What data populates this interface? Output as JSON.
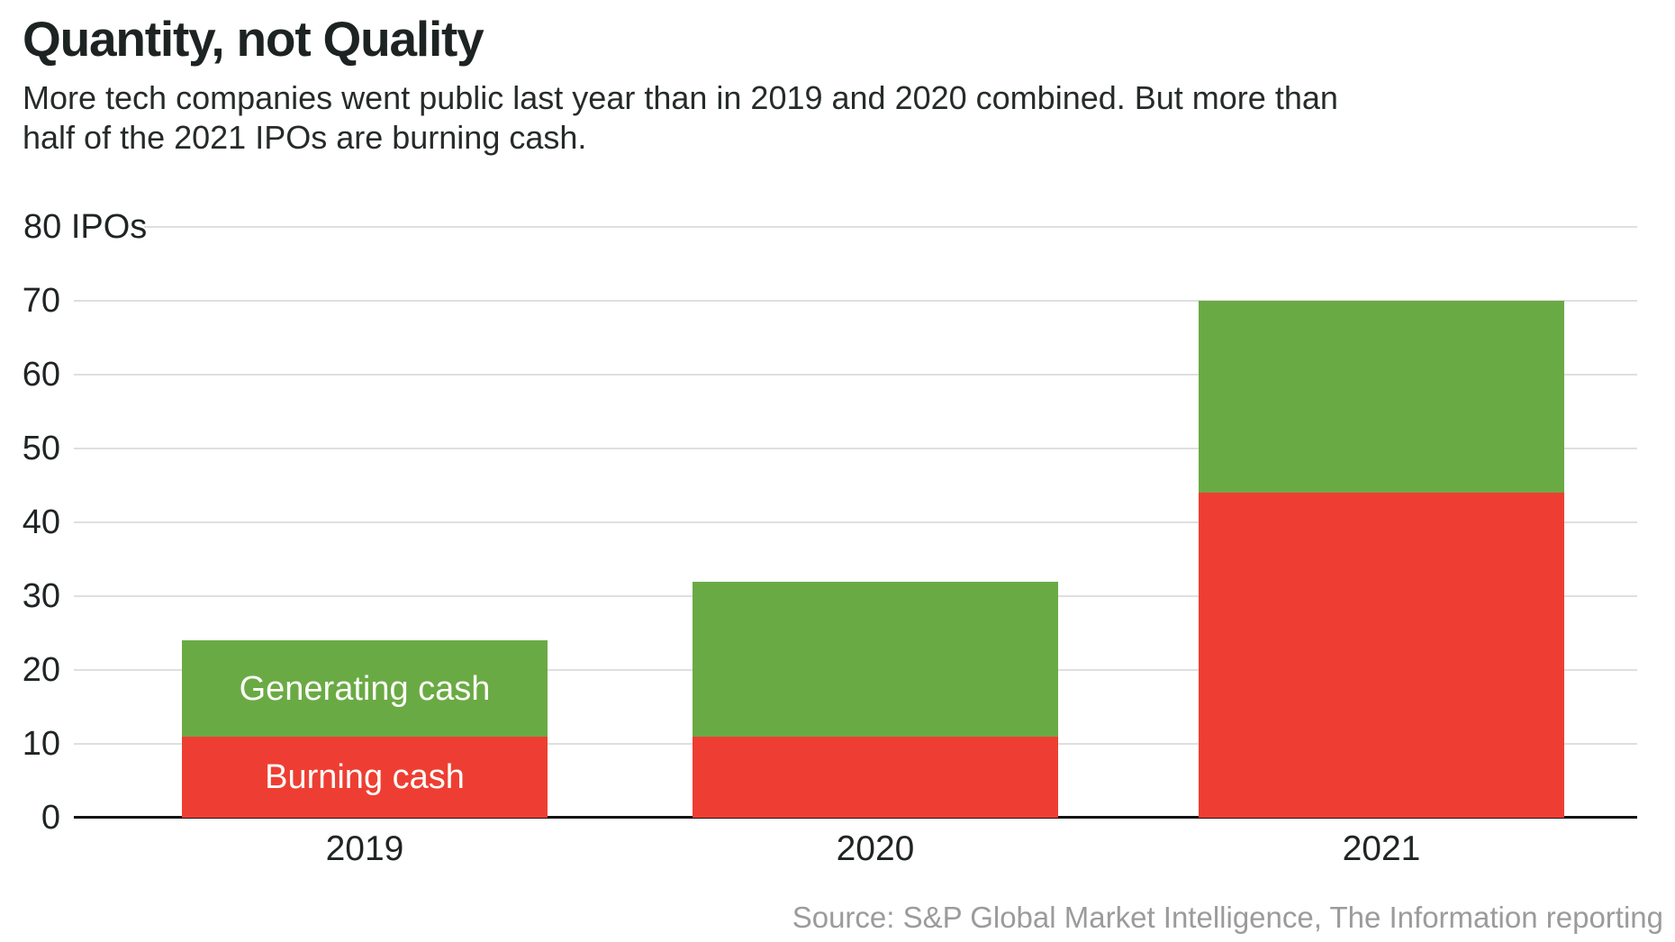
{
  "header": {
    "title": "Quantity, not Quality",
    "subtitle_line1": "More tech companies went public last year than in 2019 and 2020 combined. But more than",
    "subtitle_line2": "half of the 2021 IPOs are burning cash."
  },
  "source": "Source: S&P Global Market Intelligence, The Information reporting",
  "chart_data": {
    "type": "bar",
    "stacked": true,
    "title": "Quantity, not Quality",
    "categories": [
      "2019",
      "2020",
      "2021"
    ],
    "series": [
      {
        "name": "Burning cash",
        "color": "#ee3e33",
        "values": [
          11,
          11,
          44
        ]
      },
      {
        "name": "Generating cash",
        "color": "#6aaa45",
        "values": [
          13,
          21,
          26
        ]
      }
    ],
    "totals": [
      24,
      32,
      70
    ],
    "xlabel": "",
    "ylabel": "IPOs",
    "ylim": [
      0,
      80
    ],
    "yticks": [
      0,
      10,
      20,
      30,
      40,
      50,
      60,
      70,
      80
    ],
    "ytick_top_label": "80 IPOs",
    "grid": "horizontal",
    "legend": "inline labels inside first bar segments",
    "segment_label_generating": "Generating cash",
    "segment_label_burning": "Burning cash",
    "colors": {
      "gridline": "#dfdfdf",
      "axis_line": "#141414",
      "tick_text": "#1f2424",
      "bar_label_text": "#fdfdf8"
    }
  }
}
